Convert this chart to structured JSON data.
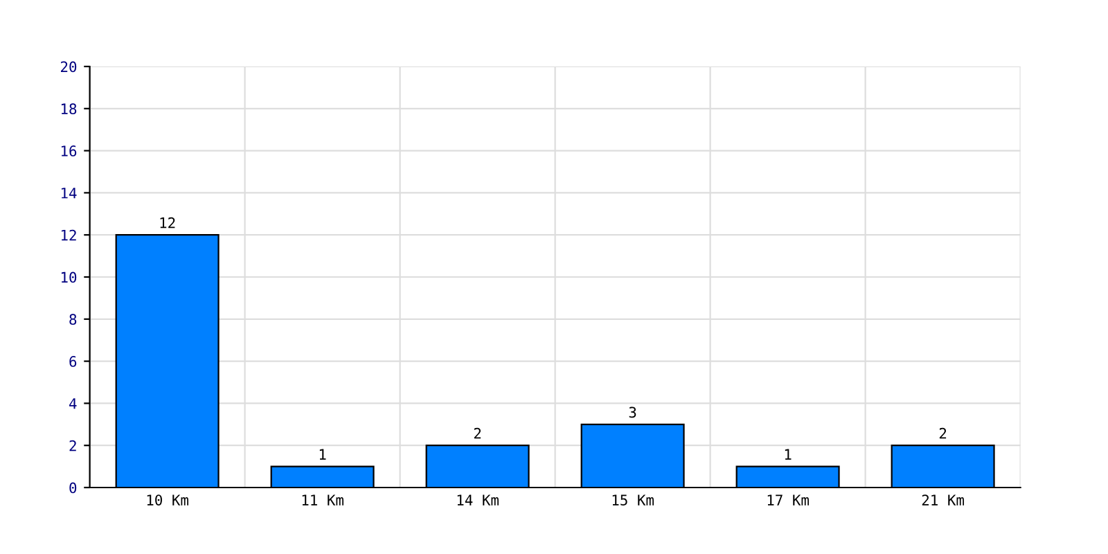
{
  "chart_data": {
    "type": "bar",
    "categories": [
      "10 Km",
      "11 Km",
      "14 Km",
      "15 Km",
      "17 Km",
      "21 Km"
    ],
    "values": [
      12,
      1,
      2,
      3,
      1,
      2
    ],
    "color": "#0080ff",
    "ylim": [
      0,
      20
    ],
    "yticks": [
      0,
      2,
      4,
      6,
      8,
      10,
      12,
      14,
      16,
      18,
      20
    ],
    "grid": true,
    "data_labels": true
  }
}
